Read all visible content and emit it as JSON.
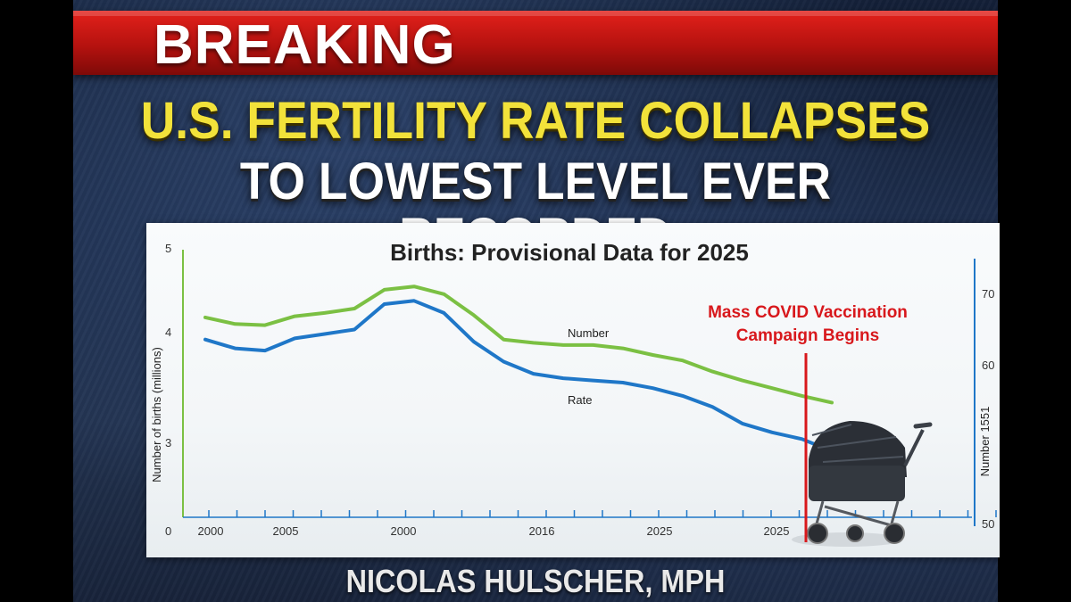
{
  "banner": {
    "label": "BREAKING"
  },
  "headline": {
    "line1": "U.S. FERTILITY RATE COLLAPSES",
    "line2": "TO LOWEST LEVEL EVER RECORDED"
  },
  "byline": "NICOLAS HULSCHER, MPH",
  "colors": {
    "banner": "#c4150f",
    "headline1": "#f2e23a",
    "number_series": "#7bc043",
    "rate_series": "#1f77c8",
    "annotation": "#d8181c"
  },
  "chart_data": {
    "type": "line",
    "title": "Births: Provisional Data for 2025",
    "ylabel_left": "Number of births (millions)",
    "ylabel_right": "Number 1551",
    "left_ticks": [
      "5",
      "4",
      "3",
      "0"
    ],
    "right_ticks": [
      "70",
      "60",
      "50"
    ],
    "x_tick_labels": [
      "2000",
      "2005",
      "2000",
      "2016",
      "2025",
      "2025"
    ],
    "series": [
      {
        "name": "Number",
        "color": "#7bc043",
        "values": [
          4.13,
          4.07,
          4.06,
          4.14,
          4.17,
          4.21,
          4.38,
          4.41,
          4.34,
          4.15,
          3.93,
          3.9,
          3.88,
          3.88,
          3.85,
          3.79,
          3.74,
          3.64,
          3.56,
          3.49,
          3.42,
          3.36
        ]
      },
      {
        "name": "Rate",
        "color": "#1f77c8",
        "values": [
          3.93,
          3.85,
          3.83,
          3.94,
          3.98,
          4.02,
          4.25,
          4.28,
          4.17,
          3.91,
          3.73,
          3.62,
          3.58,
          3.56,
          3.54,
          3.49,
          3.42,
          3.32,
          3.17,
          3.09,
          3.03,
          2.92
        ]
      }
    ],
    "annotation": {
      "line1": "Mass COVID Vaccination",
      "line2": "Campaign Begins"
    },
    "grid": false
  }
}
